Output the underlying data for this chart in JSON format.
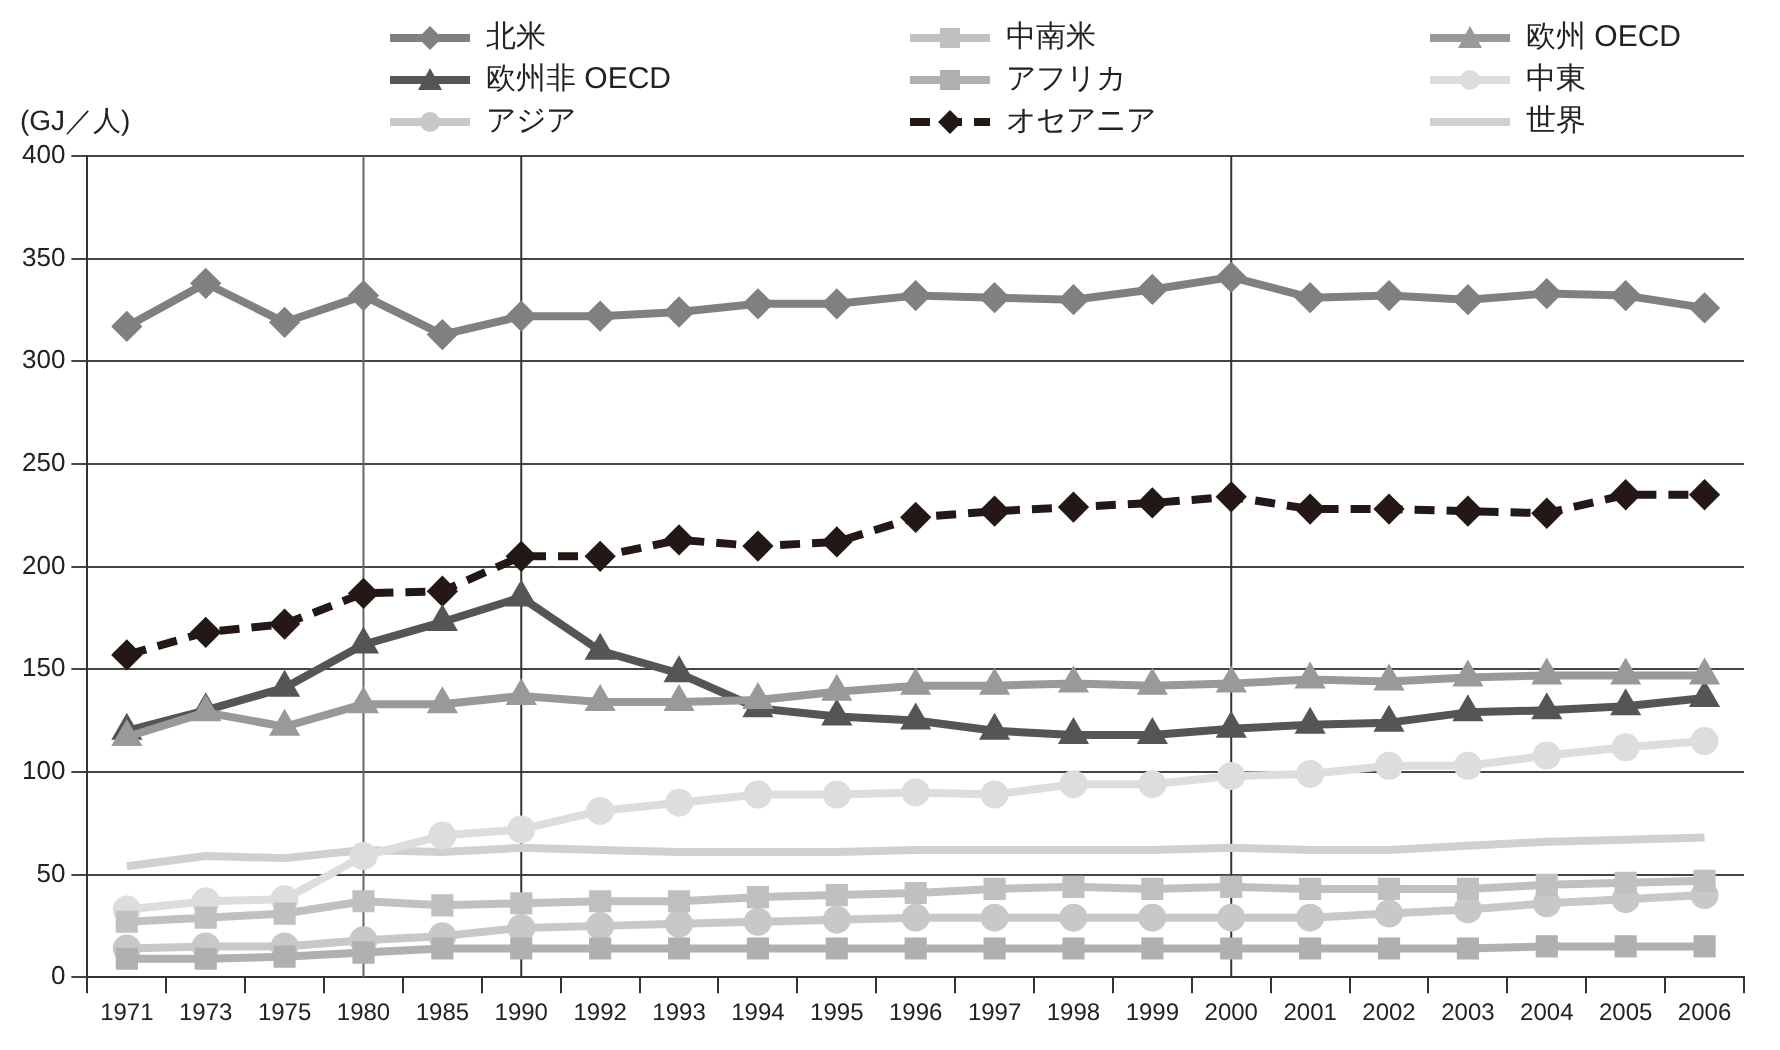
{
  "chart_data": {
    "type": "line",
    "ylabel": "(GJ／人)",
    "categories": [
      "1971",
      "1973",
      "1975",
      "1980",
      "1985",
      "1990",
      "1992",
      "1993",
      "1994",
      "1995",
      "1996",
      "1997",
      "1998",
      "1999",
      "2000",
      "2001",
      "2002",
      "2003",
      "2004",
      "2005",
      "2006"
    ],
    "series": [
      {
        "name": "北米",
        "color": "#808080",
        "marker": "diamond",
        "values": [
          317,
          338,
          319,
          332,
          313,
          322,
          322,
          324,
          328,
          328,
          332,
          331,
          330,
          335,
          341,
          331,
          332,
          330,
          333,
          332,
          326
        ]
      },
      {
        "name": "中南米",
        "color": "#c0c0c0",
        "marker": "square",
        "values": [
          27,
          29,
          31,
          37,
          35,
          36,
          37,
          37,
          39,
          40,
          41,
          43,
          44,
          43,
          44,
          43,
          43,
          43,
          45,
          46,
          47
        ]
      },
      {
        "name": "欧州 OECD",
        "color": "#999999",
        "marker": "triangle",
        "values": [
          117,
          129,
          122,
          133,
          133,
          137,
          134,
          134,
          135,
          139,
          142,
          142,
          143,
          142,
          143,
          145,
          144,
          146,
          147,
          147,
          147
        ]
      },
      {
        "name": "欧州非 OECD",
        "color": "#555555",
        "marker": "triangle",
        "values": [
          120,
          130,
          141,
          162,
          173,
          185,
          159,
          148,
          131,
          127,
          125,
          120,
          118,
          118,
          121,
          123,
          124,
          129,
          130,
          132,
          136
        ]
      },
      {
        "name": "アフリカ",
        "color": "#b0b0b0",
        "marker": "square",
        "values": [
          9,
          9,
          10,
          12,
          14,
          14,
          14,
          14,
          14,
          14,
          14,
          14,
          14,
          14,
          14,
          14,
          14,
          14,
          15,
          15,
          15
        ]
      },
      {
        "name": "中東",
        "color": "#dddddd",
        "marker": "circle",
        "values": [
          33,
          37,
          38,
          59,
          69,
          72,
          81,
          85,
          89,
          89,
          90,
          89,
          94,
          94,
          98,
          99,
          103,
          103,
          108,
          112,
          115
        ]
      },
      {
        "name": "アジア",
        "color": "#c8c8c8",
        "marker": "circle",
        "values": [
          14,
          15,
          15,
          18,
          20,
          24,
          25,
          26,
          27,
          28,
          29,
          29,
          29,
          29,
          29,
          29,
          31,
          33,
          36,
          38,
          40
        ]
      },
      {
        "name": "オセアニア",
        "color": "#231815",
        "marker": "diamond",
        "line_style": "dashed",
        "values": [
          157,
          168,
          172,
          187,
          188,
          205,
          205,
          213,
          210,
          212,
          224,
          227,
          229,
          231,
          234,
          228,
          228,
          227,
          226,
          235,
          235
        ]
      },
      {
        "name": "世界",
        "color": "#d0d0d0",
        "marker": "none",
        "values": [
          54,
          59,
          58,
          62,
          61,
          63,
          62,
          61,
          61,
          61,
          62,
          62,
          62,
          62,
          63,
          62,
          62,
          64,
          66,
          67,
          68
        ]
      }
    ],
    "ylim": [
      0,
      400
    ],
    "yticks": [
      0,
      50,
      100,
      150,
      200,
      250,
      300,
      350,
      400
    ],
    "grid": "y",
    "legend": "top",
    "ref_lines": [
      {
        "axis": "x",
        "value": "1980",
        "color": "#666666"
      },
      {
        "axis": "x",
        "value": "1990",
        "color": "#333333"
      },
      {
        "axis": "x",
        "value": "2000",
        "color": "#333333"
      }
    ]
  }
}
